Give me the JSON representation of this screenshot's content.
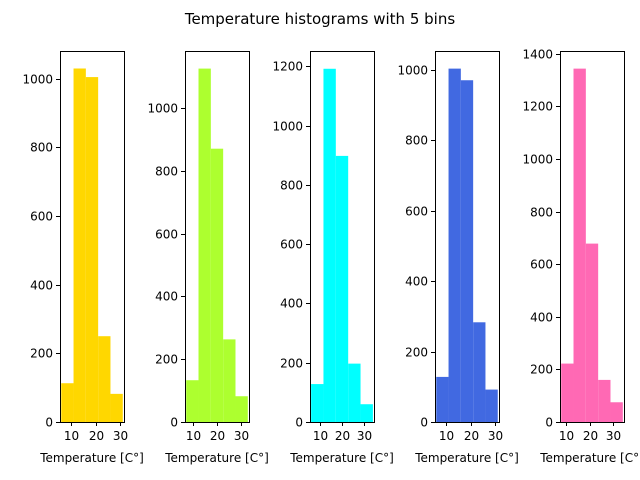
{
  "figure": {
    "title": "Temperature histograms with 5 bins"
  },
  "chart_data": [
    {
      "type": "bar",
      "color": "#ffd700",
      "bin_edges": [
        6,
        11,
        16,
        21,
        26,
        31
      ],
      "values": [
        113,
        1030,
        1005,
        250,
        82
      ],
      "xlabel": "Temperature [C°]",
      "xticks": [
        10,
        20,
        30
      ],
      "xlim": [
        5.5,
        31.5
      ],
      "yticks": [
        0,
        200,
        400,
        600,
        800,
        1000
      ],
      "ylim": [
        0,
        1081
      ],
      "grid": false
    },
    {
      "type": "bar",
      "color": "#adff2f",
      "bin_edges": [
        7,
        12.2,
        17.4,
        22.6,
        27.8,
        33
      ],
      "values": [
        133,
        1125,
        870,
        263,
        82
      ],
      "xlabel": "Temperature [C°]",
      "xticks": [
        10,
        20,
        30
      ],
      "xlim": [
        6.5,
        33.5
      ],
      "yticks": [
        0,
        200,
        400,
        600,
        800,
        1000
      ],
      "ylim": [
        0,
        1181
      ],
      "grid": false
    },
    {
      "type": "bar",
      "color": "#00ffff",
      "bin_edges": [
        6,
        11.6,
        17.2,
        22.8,
        28.4,
        34
      ],
      "values": [
        128,
        1192,
        898,
        197,
        60
      ],
      "xlabel": "Temperature [C°]",
      "xticks": [
        10,
        20,
        30
      ],
      "xlim": [
        5.5,
        34.5
      ],
      "yticks": [
        0,
        200,
        400,
        600,
        800,
        1000,
        1200
      ],
      "ylim": [
        0,
        1252
      ],
      "grid": false
    },
    {
      "type": "bar",
      "color": "#4169e1",
      "bin_edges": [
        6,
        11,
        16,
        21,
        26,
        31
      ],
      "values": [
        128,
        1003,
        970,
        283,
        92
      ],
      "xlabel": "Temperature [C°]",
      "xticks": [
        10,
        20,
        30
      ],
      "xlim": [
        5.5,
        31.5
      ],
      "yticks": [
        0,
        200,
        400,
        600,
        800,
        1000
      ],
      "ylim": [
        0,
        1053
      ],
      "grid": false
    },
    {
      "type": "bar",
      "color": "#ff69b4",
      "bin_edges": [
        8,
        13.2,
        18.4,
        23.6,
        28.8,
        34
      ],
      "values": [
        222,
        1343,
        678,
        160,
        75
      ],
      "xlabel": "Temperature [C°]",
      "xticks": [
        10,
        20,
        30
      ],
      "xlim": [
        7.5,
        34.5
      ],
      "yticks": [
        0,
        200,
        400,
        600,
        800,
        1000,
        1200,
        1400
      ],
      "ylim": [
        0,
        1410
      ],
      "grid": false
    }
  ]
}
